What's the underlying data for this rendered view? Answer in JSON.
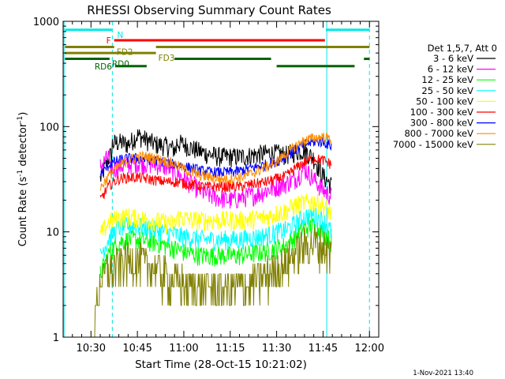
{
  "chart_data": {
    "type": "line",
    "title": "RHESSI Observing Summary Count Rates",
    "xlabel": "Start Time (28-Oct-15 10:21:02)",
    "ylabel_main": "Count Rate (s",
    "ylabel_sup1": "-1",
    "ylabel_mid": " detector",
    "ylabel_sup2": "-1",
    "ylabel_end": ")",
    "yscale": "log",
    "ylim": [
      1,
      1000
    ],
    "xlim": [
      10.35,
      12.05
    ],
    "y_ticks": [
      {
        "value": 1,
        "label": "1"
      },
      {
        "value": 10,
        "label": "10"
      },
      {
        "value": 100,
        "label": "100"
      },
      {
        "value": 1000,
        "label": "1000"
      }
    ],
    "x_ticks": [
      {
        "value": 10.5,
        "label": "10:30"
      },
      {
        "value": 10.75,
        "label": "10:45"
      },
      {
        "value": 11.0,
        "label": "11:00"
      },
      {
        "value": 11.25,
        "label": "11:15"
      },
      {
        "value": 11.5,
        "label": "11:30"
      },
      {
        "value": 11.75,
        "label": "11:45"
      },
      {
        "value": 12.0,
        "label": "12:00"
      }
    ],
    "legend_header": "Det 1,5,7, Att 0",
    "legend_position": "right",
    "series": [
      {
        "name": "3 - 6 keV",
        "color": "#000000",
        "profile": "low",
        "t_start": 10.55,
        "t_end": 11.795,
        "points": [
          [
            10.55,
            48
          ],
          [
            10.6,
            80
          ],
          [
            10.65,
            84
          ],
          [
            10.7,
            80
          ],
          [
            10.75,
            98
          ],
          [
            10.8,
            88
          ],
          [
            10.85,
            80
          ],
          [
            10.9,
            78
          ],
          [
            10.95,
            72
          ],
          [
            11.0,
            68
          ],
          [
            11.05,
            62
          ],
          [
            11.1,
            57
          ],
          [
            11.15,
            54
          ],
          [
            11.2,
            52
          ],
          [
            11.25,
            52
          ],
          [
            11.3,
            52
          ],
          [
            11.35,
            53
          ],
          [
            11.4,
            55
          ],
          [
            11.45,
            56
          ],
          [
            11.5,
            56
          ],
          [
            11.55,
            54
          ],
          [
            11.6,
            58
          ],
          [
            11.65,
            60
          ],
          [
            11.7,
            50
          ],
          [
            11.75,
            34
          ],
          [
            11.795,
            28
          ]
        ]
      },
      {
        "name": "6 - 12 keV",
        "color": "#ff00ff",
        "profile": "low",
        "t_start": 10.55,
        "t_end": 11.795,
        "points": [
          [
            10.55,
            30
          ],
          [
            10.6,
            38
          ],
          [
            10.65,
            42
          ],
          [
            10.7,
            44
          ],
          [
            10.75,
            45
          ],
          [
            10.8,
            45
          ],
          [
            10.85,
            44
          ],
          [
            10.9,
            42
          ],
          [
            10.95,
            38
          ],
          [
            11.0,
            32
          ],
          [
            11.05,
            28
          ],
          [
            11.1,
            24
          ],
          [
            11.15,
            22
          ],
          [
            11.2,
            21
          ],
          [
            11.25,
            20
          ],
          [
            11.3,
            21
          ],
          [
            11.35,
            22
          ],
          [
            11.4,
            23
          ],
          [
            11.45,
            25
          ],
          [
            11.5,
            27
          ],
          [
            11.55,
            29
          ],
          [
            11.6,
            32
          ],
          [
            11.65,
            40
          ],
          [
            11.7,
            32
          ],
          [
            11.75,
            25
          ],
          [
            11.795,
            22
          ]
        ]
      },
      {
        "name": "12 - 25 keV",
        "color": "#00ff00",
        "profile": "low",
        "t_start": 10.55,
        "t_end": 11.795,
        "points": [
          [
            10.55,
            4.0
          ],
          [
            10.6,
            6.5
          ],
          [
            10.65,
            8.0
          ],
          [
            10.7,
            8.5
          ],
          [
            10.75,
            8.5
          ],
          [
            10.8,
            8.2
          ],
          [
            10.85,
            8.0
          ],
          [
            10.9,
            7.5
          ],
          [
            10.95,
            7.0
          ],
          [
            11.0,
            6.5
          ],
          [
            11.05,
            6.2
          ],
          [
            11.1,
            6.0
          ],
          [
            11.15,
            6.0
          ],
          [
            11.2,
            6.0
          ],
          [
            11.25,
            6.0
          ],
          [
            11.3,
            6.0
          ],
          [
            11.35,
            6.2
          ],
          [
            11.4,
            6.4
          ],
          [
            11.45,
            6.6
          ],
          [
            11.5,
            7.0
          ],
          [
            11.55,
            7.5
          ],
          [
            11.6,
            9.0
          ],
          [
            11.65,
            11.0
          ],
          [
            11.7,
            11.5
          ],
          [
            11.75,
            10.0
          ],
          [
            11.795,
            8.0
          ]
        ]
      },
      {
        "name": "25 - 50 keV",
        "color": "#00ffff",
        "profile": "low",
        "t_start": 10.55,
        "t_end": 11.795,
        "points": [
          [
            10.55,
            6.0
          ],
          [
            10.6,
            9.0
          ],
          [
            10.65,
            11.0
          ],
          [
            10.7,
            11.5
          ],
          [
            10.75,
            11.5
          ],
          [
            10.8,
            11.0
          ],
          [
            10.85,
            10.5
          ],
          [
            10.9,
            10.0
          ],
          [
            10.95,
            9.5
          ],
          [
            11.0,
            9.0
          ],
          [
            11.05,
            8.8
          ],
          [
            11.1,
            8.5
          ],
          [
            11.15,
            8.5
          ],
          [
            11.2,
            8.5
          ],
          [
            11.25,
            8.5
          ],
          [
            11.3,
            8.5
          ],
          [
            11.35,
            8.8
          ],
          [
            11.4,
            9.0
          ],
          [
            11.45,
            9.3
          ],
          [
            11.5,
            10.0
          ],
          [
            11.55,
            10.5
          ],
          [
            11.6,
            12.0
          ],
          [
            11.65,
            14.0
          ],
          [
            11.7,
            14.5
          ],
          [
            11.75,
            13.0
          ],
          [
            11.795,
            10.0
          ]
        ]
      },
      {
        "name": "50 - 100 keV",
        "color": "#ffff00",
        "profile": "low",
        "t_start": 10.55,
        "t_end": 11.795,
        "points": [
          [
            10.55,
            11.0
          ],
          [
            10.6,
            15.0
          ],
          [
            10.65,
            16.0
          ],
          [
            10.7,
            16.5
          ],
          [
            10.75,
            16.0
          ],
          [
            10.8,
            15.5
          ],
          [
            10.85,
            15.0
          ],
          [
            10.9,
            14.5
          ],
          [
            10.95,
            14.0
          ],
          [
            11.0,
            13.5
          ],
          [
            11.05,
            13.0
          ],
          [
            11.1,
            13.0
          ],
          [
            11.15,
            13.0
          ],
          [
            11.2,
            13.0
          ],
          [
            11.25,
            13.0
          ],
          [
            11.3,
            13.0
          ],
          [
            11.35,
            13.2
          ],
          [
            11.4,
            13.5
          ],
          [
            11.45,
            14.0
          ],
          [
            11.5,
            15.0
          ],
          [
            11.55,
            16.0
          ],
          [
            11.6,
            18.0
          ],
          [
            11.65,
            19.0
          ],
          [
            11.7,
            19.5
          ],
          [
            11.75,
            18.0
          ],
          [
            11.795,
            15.0
          ]
        ]
      },
      {
        "name": "100 - 300 keV",
        "color": "#ff0000",
        "profile": "mid",
        "t_start": 10.55,
        "t_end": 11.795,
        "points": [
          [
            10.55,
            20
          ],
          [
            10.6,
            28
          ],
          [
            10.65,
            32
          ],
          [
            10.7,
            33
          ],
          [
            10.75,
            33
          ],
          [
            10.8,
            32
          ],
          [
            10.85,
            31
          ],
          [
            10.9,
            30
          ],
          [
            10.95,
            30
          ],
          [
            11.0,
            29
          ],
          [
            11.05,
            28
          ],
          [
            11.1,
            27
          ],
          [
            11.15,
            27
          ],
          [
            11.2,
            27
          ],
          [
            11.25,
            27
          ],
          [
            11.3,
            27
          ],
          [
            11.35,
            28
          ],
          [
            11.4,
            29
          ],
          [
            11.45,
            30
          ],
          [
            11.5,
            32
          ],
          [
            11.55,
            34
          ],
          [
            11.6,
            40
          ],
          [
            11.65,
            46
          ],
          [
            11.7,
            50
          ],
          [
            11.75,
            48
          ],
          [
            11.795,
            44
          ]
        ]
      },
      {
        "name": "300 - 800 keV",
        "color": "#0000ff",
        "profile": "mid",
        "t_start": 10.55,
        "t_end": 11.795,
        "points": [
          [
            10.55,
            35
          ],
          [
            10.6,
            44
          ],
          [
            10.65,
            48
          ],
          [
            10.7,
            50
          ],
          [
            10.75,
            50
          ],
          [
            10.8,
            49
          ],
          [
            10.85,
            48
          ],
          [
            10.9,
            46
          ],
          [
            10.95,
            44
          ],
          [
            11.0,
            42
          ],
          [
            11.05,
            40
          ],
          [
            11.1,
            38
          ],
          [
            11.15,
            37
          ],
          [
            11.2,
            37
          ],
          [
            11.25,
            37
          ],
          [
            11.3,
            38
          ],
          [
            11.35,
            40
          ],
          [
            11.4,
            42
          ],
          [
            11.45,
            44
          ],
          [
            11.5,
            47
          ],
          [
            11.55,
            52
          ],
          [
            11.6,
            60
          ],
          [
            11.65,
            68
          ],
          [
            11.7,
            72
          ],
          [
            11.75,
            72
          ],
          [
            11.795,
            66
          ]
        ]
      },
      {
        "name": "800 - 7000 keV",
        "color": "#ff8c00",
        "profile": "mid",
        "t_start": 10.55,
        "t_end": 11.795,
        "points": [
          [
            10.55,
            26
          ],
          [
            10.6,
            35
          ],
          [
            10.65,
            42
          ],
          [
            10.7,
            48
          ],
          [
            10.75,
            52
          ],
          [
            10.8,
            52
          ],
          [
            10.85,
            50
          ],
          [
            10.9,
            47
          ],
          [
            10.95,
            44
          ],
          [
            11.0,
            40
          ],
          [
            11.05,
            36
          ],
          [
            11.1,
            34
          ],
          [
            11.15,
            33
          ],
          [
            11.2,
            32
          ],
          [
            11.25,
            32
          ],
          [
            11.3,
            33
          ],
          [
            11.35,
            35
          ],
          [
            11.4,
            38
          ],
          [
            11.45,
            42
          ],
          [
            11.5,
            47
          ],
          [
            11.55,
            55
          ],
          [
            11.6,
            65
          ],
          [
            11.65,
            74
          ],
          [
            11.7,
            78
          ],
          [
            11.75,
            80
          ],
          [
            11.795,
            76
          ]
        ]
      },
      {
        "name": "7000 - 15000 keV",
        "color": "#808000",
        "profile": "noisy",
        "t_start": 10.52,
        "t_end": 11.795,
        "points": [
          [
            10.52,
            1.5
          ],
          [
            10.55,
            3.5
          ],
          [
            10.6,
            4.5
          ],
          [
            10.65,
            5.0
          ],
          [
            10.7,
            5.5
          ],
          [
            10.75,
            5.5
          ],
          [
            10.8,
            5.0
          ],
          [
            10.85,
            4.5
          ],
          [
            10.9,
            4.0
          ],
          [
            10.95,
            3.5
          ],
          [
            11.0,
            3.2
          ],
          [
            11.05,
            3.0
          ],
          [
            11.1,
            3.0
          ],
          [
            11.15,
            3.0
          ],
          [
            11.2,
            3.0
          ],
          [
            11.25,
            3.0
          ],
          [
            11.3,
            3.1
          ],
          [
            11.35,
            3.2
          ],
          [
            11.4,
            3.5
          ],
          [
            11.45,
            4.0
          ],
          [
            11.5,
            4.5
          ],
          [
            11.55,
            5.0
          ],
          [
            11.6,
            6.5
          ],
          [
            11.65,
            7.5
          ],
          [
            11.7,
            8.0
          ],
          [
            11.75,
            7.5
          ],
          [
            11.795,
            6.0
          ]
        ]
      }
    ],
    "steps": [
      {
        "series_index": 0,
        "t": 10.615,
        "factor": 0.78
      },
      {
        "series_index": 0,
        "t": 10.96,
        "factor": 0.85
      },
      {
        "series_index": 1,
        "t": 10.6,
        "factor": 1.4
      },
      {
        "series_index": 4,
        "t": 10.96,
        "factor": 0.85
      }
    ],
    "verticals": [
      {
        "label": "left-edge",
        "t": 10.355,
        "style": "solid"
      },
      {
        "label": "sun-set-1",
        "t": 10.615,
        "style": "dashed"
      },
      {
        "label": "sun-rise-2",
        "t": 11.77,
        "style": "solid"
      },
      {
        "label": "sun-set-2",
        "t": 12.0,
        "style": "dashed"
      }
    ],
    "bars": [
      {
        "label": "N",
        "color": "#00e8e8",
        "segments": [
          [
            10.36,
            10.615
          ],
          [
            11.765,
            12.0
          ]
        ],
        "level": 830,
        "label_side": "right"
      },
      {
        "label": "F",
        "color": "#ff0000",
        "segments": [
          [
            10.625,
            11.76
          ]
        ],
        "level": 660,
        "label_side": "left"
      },
      {
        "label": "FD2",
        "color": "#808000",
        "segments": [
          [
            10.36,
            10.625
          ],
          [
            10.85,
            12.0
          ]
        ],
        "level": 570,
        "label_side": "right"
      },
      {
        "label": "FD3",
        "color": "#808000",
        "segments": [
          [
            10.36,
            10.85
          ]
        ],
        "level": 500,
        "label_side": "right"
      },
      {
        "label": "RD0",
        "color": "#006400",
        "segments": [
          [
            10.36,
            10.6
          ],
          [
            10.95,
            11.47
          ],
          [
            11.97,
            12.0
          ]
        ],
        "level": 440,
        "label_side": "right"
      },
      {
        "label": "RD6",
        "color": "#006400",
        "segments": [
          [
            10.63,
            10.8
          ],
          [
            11.5,
            11.92
          ]
        ],
        "level": 375,
        "label_side": "left"
      }
    ],
    "footer_stamp": "1-Nov-2021 13:40"
  }
}
